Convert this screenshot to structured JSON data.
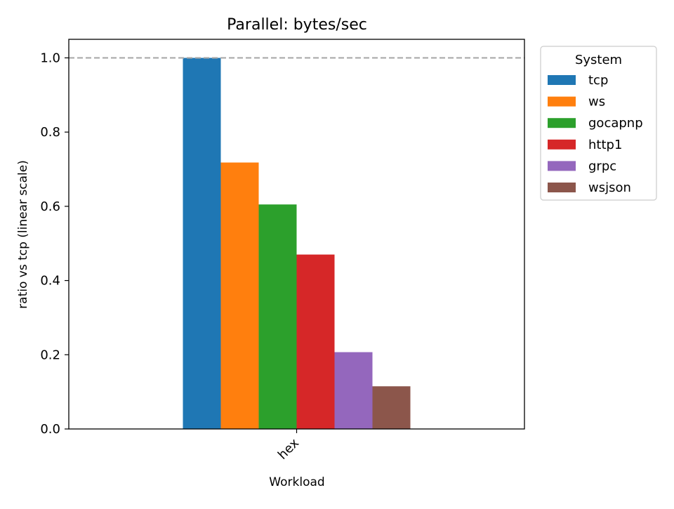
{
  "chart_data": {
    "type": "bar",
    "title": "Parallel: bytes/sec",
    "xlabel": "Workload",
    "ylabel": "ratio vs tcp (linear scale)",
    "categories": [
      "hex"
    ],
    "ylim": [
      0,
      1.05
    ],
    "yticks": [
      0.0,
      0.2,
      0.4,
      0.6,
      0.8,
      1.0
    ],
    "ytick_labels": [
      "0.0",
      "0.2",
      "0.4",
      "0.6",
      "0.8",
      "1.0"
    ],
    "reference_line": {
      "y": 1.0,
      "style": "dashed",
      "color": "#aaaaaa"
    },
    "grid": false,
    "legend": {
      "title": "System",
      "placement": "outside-top-right"
    },
    "series": [
      {
        "name": "tcp",
        "values": [
          1.0
        ],
        "color": "#1f77b4"
      },
      {
        "name": "ws",
        "values": [
          0.718
        ],
        "color": "#ff7f0e"
      },
      {
        "name": "gocapnp",
        "values": [
          0.605
        ],
        "color": "#2ca02c"
      },
      {
        "name": "http1",
        "values": [
          0.47
        ],
        "color": "#d62728"
      },
      {
        "name": "grpc",
        "values": [
          0.207
        ],
        "color": "#9467bd"
      },
      {
        "name": "wsjson",
        "values": [
          0.115
        ],
        "color": "#8c564b"
      }
    ]
  }
}
